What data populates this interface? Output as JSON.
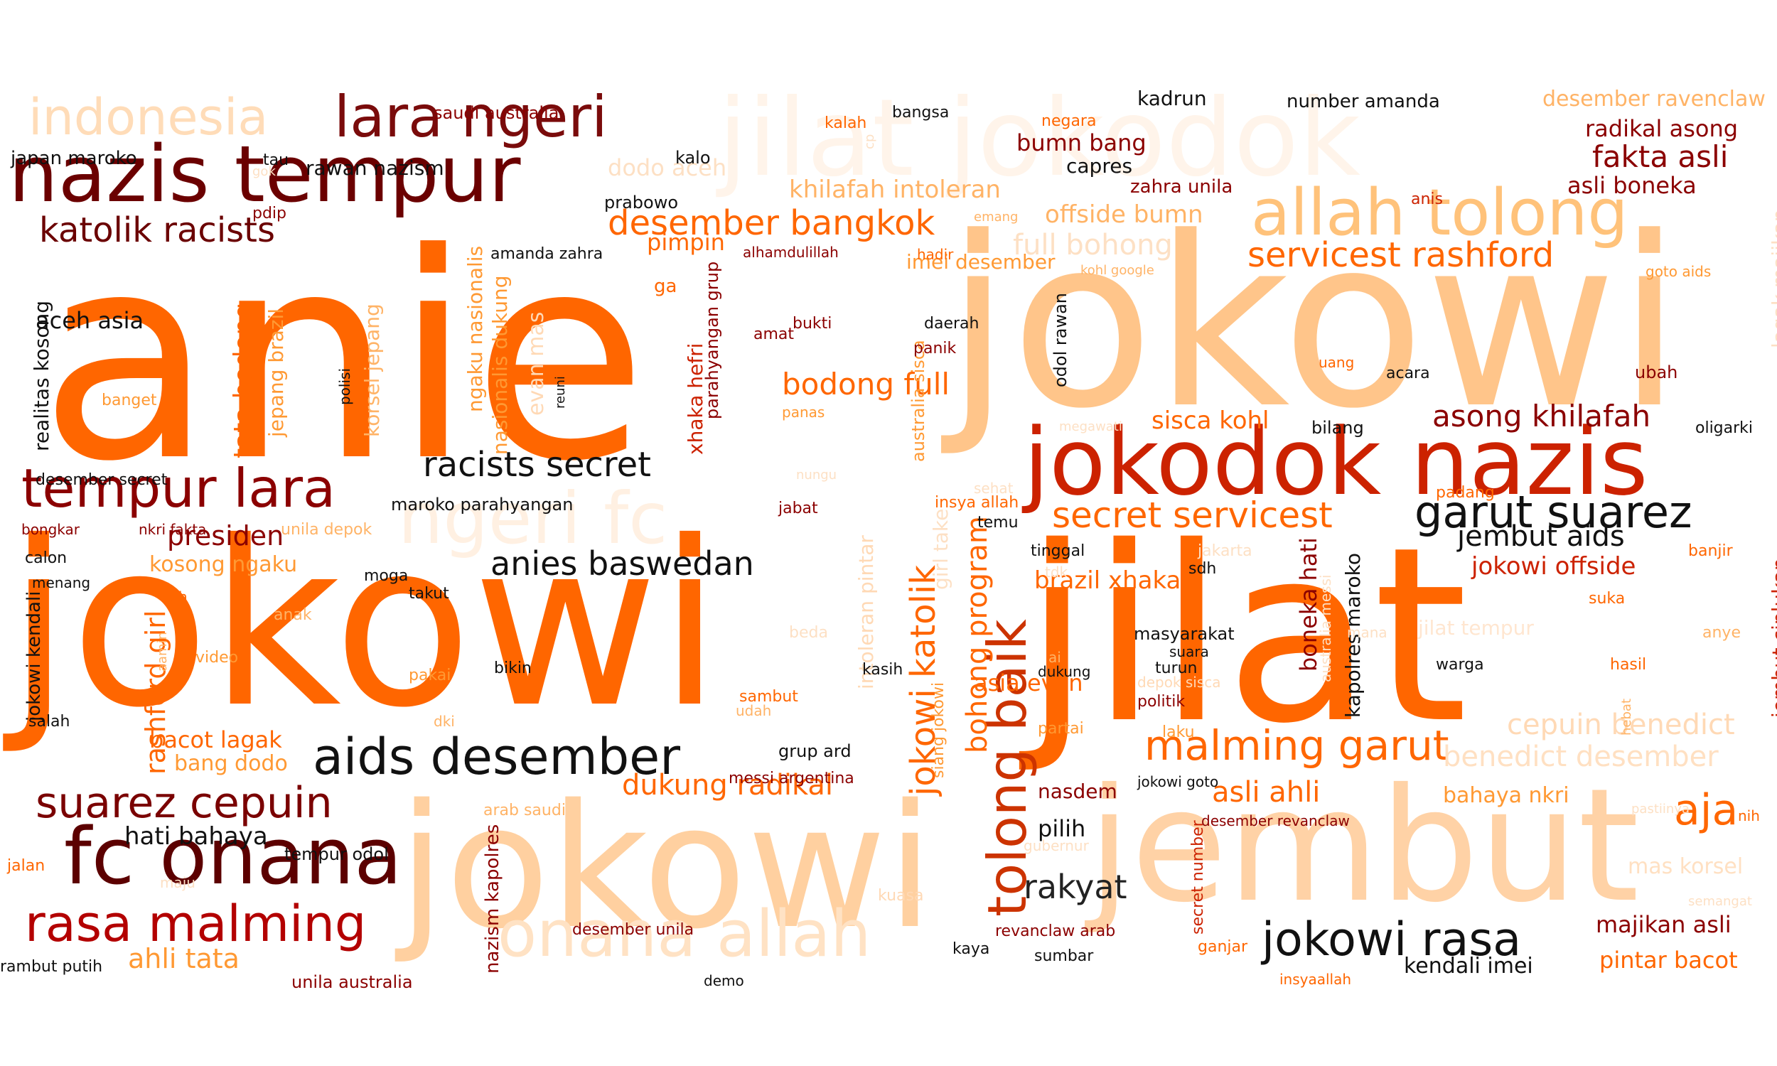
{
  "colors": {
    "background": "#ffffff",
    "palette": [
      "#ff6a00",
      "#ffc98f",
      "#fde1c5",
      "#6b0f0f",
      "#8b1a10",
      "#cc2200",
      "#ff8c1a",
      "#1a1a1a"
    ]
  },
  "words": [
    {
      "text": "anie",
      "color": "#ff6600"
    },
    {
      "text": "jokowi",
      "color": "#ff6600"
    },
    {
      "text": "jilat",
      "color": "#ff6600"
    },
    {
      "text": "jokowi",
      "color": "#ffc58a"
    },
    {
      "text": "jokowi",
      "color": "#ffd0a0"
    },
    {
      "text": "jembut",
      "color": "#ffd2a6"
    },
    {
      "text": "jilat jokodok",
      "color": "#fff4ea"
    },
    {
      "text": "jokodok nazis",
      "color": "#cc2200"
    },
    {
      "text": "nazis tempur",
      "color": "#6b0000"
    },
    {
      "text": "allah tolong",
      "color": "#ffc27a"
    },
    {
      "text": "fc onana",
      "color": "#5c0000"
    },
    {
      "text": "onana allah",
      "color": "#ffe2c4"
    },
    {
      "text": "lara ngeri",
      "color": "#7a0b0b"
    },
    {
      "text": "indonesia",
      "color": "#ffdcb8"
    },
    {
      "text": "tempur lara",
      "color": "#8b0000"
    },
    {
      "text": "ngeri fc",
      "color": "#fff0e2"
    },
    {
      "text": "aids desember",
      "color": "#111111"
    },
    {
      "text": "rasa malming",
      "color": "#b30000"
    },
    {
      "text": "jokowi rasa",
      "color": "#111111"
    },
    {
      "text": "suarez cepuin",
      "color": "#7a0000"
    },
    {
      "text": "katolik racists",
      "color": "#6b0000"
    },
    {
      "text": "racists secret",
      "color": "#111111"
    },
    {
      "text": "malming garut",
      "color": "#ff6600"
    },
    {
      "text": "tolong baik",
      "color": "#cc3300"
    },
    {
      "text": "garut suarez",
      "color": "#111111"
    },
    {
      "text": "secret servicest",
      "color": "#ff6600"
    },
    {
      "text": "servicest rashford",
      "color": "#ff6600"
    },
    {
      "text": "desember bangkok",
      "color": "#ff6600"
    },
    {
      "text": "anies baswedan",
      "color": "#111111"
    },
    {
      "text": "asong khilafah",
      "color": "#8b0000"
    },
    {
      "text": "fakta asli",
      "color": "#8b0000"
    },
    {
      "text": "aja",
      "color": "#ff6600"
    },
    {
      "text": "rakyat",
      "color": "#222222"
    },
    {
      "text": "bodong full",
      "color": "#ff6600"
    },
    {
      "text": "asli ahli",
      "color": "#ff6600"
    },
    {
      "text": "jembut aids",
      "color": "#111111"
    },
    {
      "text": "dukung radikal",
      "color": "#ff6600"
    },
    {
      "text": "presiden",
      "color": "#8b0000"
    },
    {
      "text": "ahli tata",
      "color": "#ff9933"
    },
    {
      "text": "hati bahaya",
      "color": "#111111"
    },
    {
      "text": "jokowi katolik",
      "color": "#ff6600"
    },
    {
      "text": "bohong program",
      "color": "#ff6600"
    },
    {
      "text": "cepuin benedict",
      "color": "#ffd9b5"
    },
    {
      "text": "benedict desember",
      "color": "#ffe0c2"
    },
    {
      "text": "full bohong",
      "color": "#fde0c4"
    },
    {
      "text": "khilafah intoleran",
      "color": "#ffb366"
    },
    {
      "text": "offside bumn",
      "color": "#ffb366"
    },
    {
      "text": "sisca kohl",
      "color": "#ff6600"
    },
    {
      "text": "rashford girl",
      "color": "#ff6600"
    },
    {
      "text": "tata bodong",
      "color": "#ff6600"
    },
    {
      "text": "jokowi offside",
      "color": "#cc2200"
    },
    {
      "text": "majikan asli",
      "color": "#8b0000"
    },
    {
      "text": "pintar bacot",
      "color": "#ff6600"
    },
    {
      "text": "kendali imei",
      "color": "#111111"
    },
    {
      "text": "brazil xhaka",
      "color": "#ff6600"
    },
    {
      "text": "asia evan",
      "color": "#ff6600"
    },
    {
      "text": "bacot lagak",
      "color": "#ff6600"
    },
    {
      "text": "kosong ngaku",
      "color": "#ff9933"
    },
    {
      "text": "aceh asia",
      "color": "#111111"
    },
    {
      "text": "desember ravenclaw",
      "color": "#ffb366"
    },
    {
      "text": "radikal asong",
      "color": "#8b0000"
    },
    {
      "text": "asli boneka",
      "color": "#8b0000"
    },
    {
      "text": "bumn bang",
      "color": "#8b0000"
    },
    {
      "text": "kadrun",
      "color": "#111111"
    },
    {
      "text": "number amanda",
      "color": "#111111"
    },
    {
      "text": "capres",
      "color": "#111111"
    },
    {
      "text": "zahra unila",
      "color": "#8b0000"
    },
    {
      "text": "dodo aceh",
      "color": "#fde0c4"
    },
    {
      "text": "pimpin",
      "color": "#ff6600"
    },
    {
      "text": "imei desember",
      "color": "#ff9933"
    },
    {
      "text": "pilih",
      "color": "#111111"
    },
    {
      "text": "bang dodo",
      "color": "#ff9933"
    },
    {
      "text": "bahaya nkri",
      "color": "#ff9933"
    },
    {
      "text": "mas korsel",
      "color": "#ffe0c2"
    },
    {
      "text": "jilat tempur",
      "color": "#ffe6d0"
    },
    {
      "text": "nasdem",
      "color": "#8b0000"
    },
    {
      "text": "boneka hati",
      "color": "#8b0000"
    },
    {
      "text": "kapolres maroko",
      "color": "#111111"
    },
    {
      "text": "jembut ciplukan",
      "color": "#cc2200"
    },
    {
      "text": "lagak majikan",
      "color": "#fde0c4"
    },
    {
      "text": "realitas kosong",
      "color": "#111111"
    },
    {
      "text": "jepang brazil",
      "color": "#ff9933"
    },
    {
      "text": "korsel jepang",
      "color": "#ffb366"
    },
    {
      "text": "ngaku nasionalis",
      "color": "#ff9933"
    },
    {
      "text": "nasionalis dukung",
      "color": "#ff9933"
    },
    {
      "text": "evan mas",
      "color": "#ffd9b5"
    },
    {
      "text": "xhaka hefri",
      "color": "#cc2200"
    },
    {
      "text": "parahyangan grup",
      "color": "#8b0000"
    },
    {
      "text": "intoleran pintar",
      "color": "#ffd9b5"
    },
    {
      "text": "girl take",
      "color": "#fde0c4"
    },
    {
      "text": "australia sisca",
      "color": "#ff9933"
    },
    {
      "text": "odol rawan",
      "color": "#111111"
    },
    {
      "text": "jokowi kendali",
      "color": "#111111"
    },
    {
      "text": "nazism kapolres",
      "color": "#8b0000"
    },
    {
      "text": "secret number",
      "color": "#cc2200"
    },
    {
      "text": "siang jokowi",
      "color": "#ff9933"
    },
    {
      "text": "australia messi",
      "color": "#fde0c4"
    },
    {
      "text": "saudi australia",
      "color": "#8b0000"
    },
    {
      "text": "japan maroko",
      "color": "#111111"
    },
    {
      "text": "rawan nazism",
      "color": "#111111"
    },
    {
      "text": "tau",
      "color": "#111111"
    },
    {
      "text": "kalo",
      "color": "#111111"
    },
    {
      "text": "prabowo",
      "color": "#111111"
    },
    {
      "text": "amanda zahra",
      "color": "#111111"
    },
    {
      "text": "alhamdulillah",
      "color": "#8b0000"
    },
    {
      "text": "kalah",
      "color": "#ff6600"
    },
    {
      "text": "bangsa",
      "color": "#111111"
    },
    {
      "text": "negara",
      "color": "#ff6600"
    },
    {
      "text": "emang",
      "color": "#ffb366"
    },
    {
      "text": "hadir",
      "color": "#ff6600"
    },
    {
      "text": "kohl google",
      "color": "#ffb366"
    },
    {
      "text": "goto aids",
      "color": "#ff9933"
    },
    {
      "text": "anis",
      "color": "#cc2200"
    },
    {
      "text": "ga",
      "color": "#ff6600"
    },
    {
      "text": "pdip",
      "color": "#8b0000"
    },
    {
      "text": "banget",
      "color": "#ff9933"
    },
    {
      "text": "bukti",
      "color": "#8b0000"
    },
    {
      "text": "amat",
      "color": "#8b0000"
    },
    {
      "text": "daerah",
      "color": "#111111"
    },
    {
      "text": "panik",
      "color": "#8b0000"
    },
    {
      "text": "uang",
      "color": "#ff6600"
    },
    {
      "text": "acara",
      "color": "#111111"
    },
    {
      "text": "ubah",
      "color": "#8b0000"
    },
    {
      "text": "polisi",
      "color": "#111111"
    },
    {
      "text": "reuni",
      "color": "#111111"
    },
    {
      "text": "panas",
      "color": "#ff9933"
    },
    {
      "text": "megawati",
      "color": "#fde0c4"
    },
    {
      "text": "bilang",
      "color": "#111111"
    },
    {
      "text": "oligarki",
      "color": "#111111"
    },
    {
      "text": "desember secret",
      "color": "#111111"
    },
    {
      "text": "maroko parahyangan",
      "color": "#111111"
    },
    {
      "text": "jabat",
      "color": "#8b0000"
    },
    {
      "text": "sehat",
      "color": "#fde0c4"
    },
    {
      "text": "insya allah",
      "color": "#ff6600"
    },
    {
      "text": "temu",
      "color": "#111111"
    },
    {
      "text": "padang",
      "color": "#ff6600"
    },
    {
      "text": "bongkar",
      "color": "#8b0000"
    },
    {
      "text": "nkri fakta",
      "color": "#8b0000"
    },
    {
      "text": "unila depok",
      "color": "#ffb366"
    },
    {
      "text": "calon",
      "color": "#111111"
    },
    {
      "text": "tinggal",
      "color": "#111111"
    },
    {
      "text": "jakarta",
      "color": "#fde0c4"
    },
    {
      "text": "banjir",
      "color": "#ff6600"
    },
    {
      "text": "menang",
      "color": "#111111"
    },
    {
      "text": "moga",
      "color": "#111111"
    },
    {
      "text": "takut",
      "color": "#111111"
    },
    {
      "text": "tdk",
      "color": "#fde0c4"
    },
    {
      "text": "sdh",
      "color": "#111111"
    },
    {
      "text": "sih",
      "color": "#ff6600"
    },
    {
      "text": "suka",
      "color": "#ff6600"
    },
    {
      "text": "anak",
      "color": "#ffb366"
    },
    {
      "text": "beda",
      "color": "#fde0c4"
    },
    {
      "text": "masyarakat",
      "color": "#111111"
    },
    {
      "text": "suara",
      "color": "#111111"
    },
    {
      "text": "turun",
      "color": "#111111"
    },
    {
      "text": "mana",
      "color": "#fde0c4"
    },
    {
      "text": "anye",
      "color": "#ffb366"
    },
    {
      "text": "video",
      "color": "#ff9933"
    },
    {
      "text": "aamin",
      "color": "#ffb366"
    },
    {
      "text": "bikin",
      "color": "#111111"
    },
    {
      "text": "pakai",
      "color": "#ff9933"
    },
    {
      "text": "kasih",
      "color": "#111111"
    },
    {
      "text": "ai",
      "color": "#ffb366"
    },
    {
      "text": "dukung",
      "color": "#111111"
    },
    {
      "text": "depok sisca",
      "color": "#ffd9b5"
    },
    {
      "text": "warga",
      "color": "#111111"
    },
    {
      "text": "hasil",
      "color": "#ff6600"
    },
    {
      "text": "politik",
      "color": "#8b0000"
    },
    {
      "text": "salah",
      "color": "#111111"
    },
    {
      "text": "dki",
      "color": "#ffb366"
    },
    {
      "text": "sambut",
      "color": "#ff6600"
    },
    {
      "text": "udah",
      "color": "#ffb366"
    },
    {
      "text": "partai",
      "color": "#ff9933"
    },
    {
      "text": "laku",
      "color": "#ff9933"
    },
    {
      "text": "hebat",
      "color": "#ffb366"
    },
    {
      "text": "grup ard",
      "color": "#111111"
    },
    {
      "text": "messi argentina",
      "color": "#8b0000"
    },
    {
      "text": "jokowi goto",
      "color": "#111111"
    },
    {
      "text": "desember revanclaw",
      "color": "#8b0000"
    },
    {
      "text": "arab saudi",
      "color": "#ffb366"
    },
    {
      "text": "tempur odol",
      "color": "#111111"
    },
    {
      "text": "gubernur",
      "color": "#fde0c4"
    },
    {
      "text": "pastiinya",
      "color": "#fde0c4"
    },
    {
      "text": "nih",
      "color": "#ff6600"
    },
    {
      "text": "jalan",
      "color": "#ff6600"
    },
    {
      "text": "maju",
      "color": "#fde0c4"
    },
    {
      "text": "kuasa",
      "color": "#ffd9b5"
    },
    {
      "text": "semangat",
      "color": "#fde0c4"
    },
    {
      "text": "desember unila",
      "color": "#8b0000"
    },
    {
      "text": "kaya",
      "color": "#111111"
    },
    {
      "text": "revanclaw arab",
      "color": "#8b0000"
    },
    {
      "text": "sumbar",
      "color": "#111111"
    },
    {
      "text": "ganjar",
      "color": "#ff6600"
    },
    {
      "text": "insyaallah",
      "color": "#ff6600"
    },
    {
      "text": "rambut putih",
      "color": "#111111"
    },
    {
      "text": "unila australia",
      "color": "#8b0000"
    },
    {
      "text": "demo",
      "color": "#111111"
    },
    {
      "text": "gok",
      "color": "#fde0c4"
    },
    {
      "text": "cp",
      "color": "#fde0c4"
    },
    {
      "text": "nungu",
      "color": "#fde0c4"
    }
  ]
}
